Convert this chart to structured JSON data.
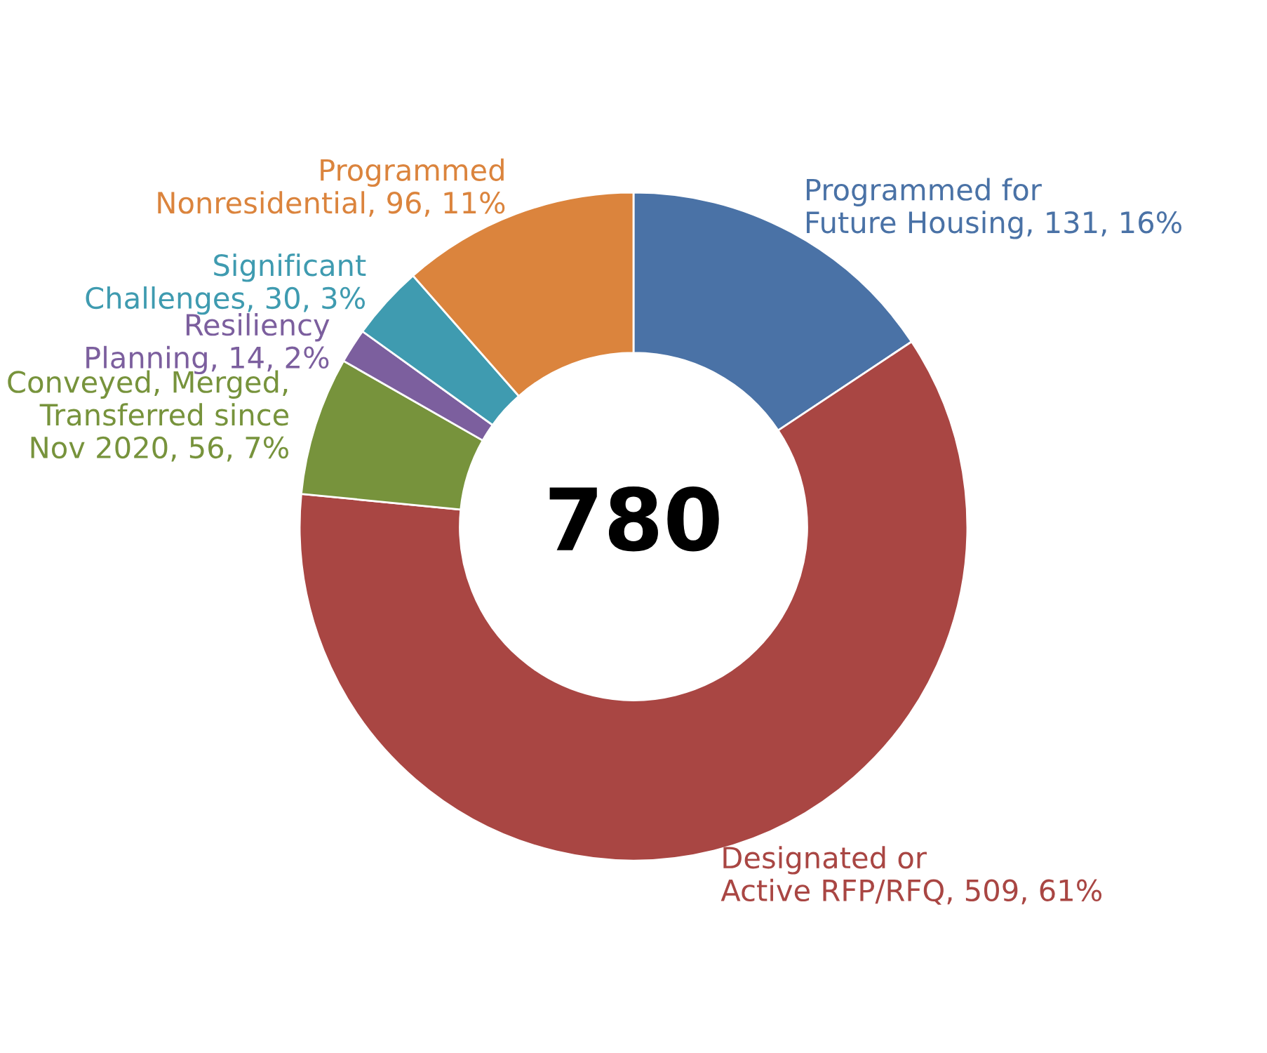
{
  "chart_data": {
    "type": "donut",
    "categories": [
      "Programmed for\nFuture Housing",
      "Designated or\nActive RFP/RFQ",
      "Conveyed, Merged,\nTransferred since\nNov 2020",
      "Resiliency\nPlanning",
      "Significant\nChallenges",
      "Programmed\nNonresidential"
    ],
    "values": [
      131,
      509,
      56,
      14,
      30,
      96
    ],
    "value_labels": [
      "131, 16%",
      "509, 61%",
      "56, 7%",
      "14, 2%",
      "30, 3%",
      "96, 11%"
    ],
    "colors": [
      "#4a72a6",
      "#a94643",
      "#77933c",
      "#7c5f9e",
      "#3f9bb0",
      "#db843d"
    ],
    "annotations": [
      "780"
    ],
    "legend": false
  }
}
